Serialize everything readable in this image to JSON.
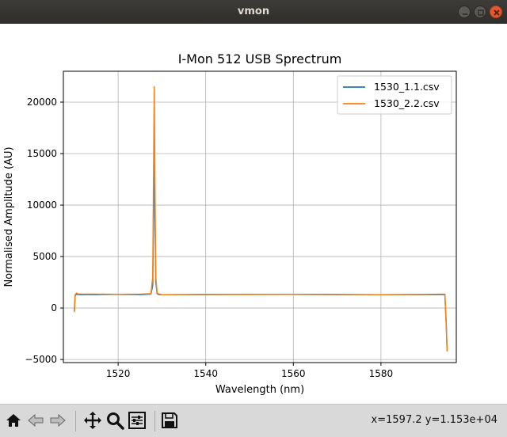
{
  "window": {
    "title": "vmon"
  },
  "toolbar": {
    "buttons": [
      {
        "name": "home-button",
        "icon": "home-icon"
      },
      {
        "name": "back-button",
        "icon": "back-arrow-icon"
      },
      {
        "name": "forward-button",
        "icon": "forward-arrow-icon"
      },
      {
        "name": "pan-button",
        "icon": "move-icon"
      },
      {
        "name": "zoom-button",
        "icon": "zoom-icon"
      },
      {
        "name": "configure-subplots-button",
        "icon": "sliders-icon"
      },
      {
        "name": "save-button",
        "icon": "save-icon"
      }
    ],
    "coords": "x=1597.2 y=1.153e+04"
  },
  "chart_data": {
    "type": "line",
    "title": "I-Mon 512 USB Sprectrum",
    "xlabel": "Wavelength (nm)",
    "ylabel": "Normalised Amplitude (AU)",
    "xlim": [
      1507.5,
      1597.2
    ],
    "ylim": [
      -5300,
      23000
    ],
    "xticks": [
      1520,
      1540,
      1560,
      1580
    ],
    "yticks": [
      -5000,
      0,
      5000,
      10000,
      15000,
      20000
    ],
    "grid": true,
    "legend_position": "top-right",
    "colors": {
      "series1": "#1f77b4",
      "series2": "#ff7f0e"
    },
    "series": [
      {
        "name": "1530_1.1.csv",
        "x": [
          1510.0,
          1510.2,
          1510.5,
          1511,
          1515,
          1520,
          1525,
          1527.5,
          1527.9,
          1528.1,
          1528.25,
          1528.4,
          1528.6,
          1528.9,
          1529.3,
          1530,
          1540,
          1550,
          1560,
          1570,
          1580,
          1590,
          1594.6,
          1594.9,
          1595.1
        ],
        "y": [
          -300,
          1200,
          1350,
          1300,
          1300,
          1320,
          1300,
          1350,
          2200,
          9000,
          18000,
          9000,
          2500,
          1400,
          1300,
          1300,
          1300,
          1320,
          1320,
          1300,
          1300,
          1300,
          1300,
          -1500,
          -4200
        ]
      },
      {
        "name": "1530_2.2.csv",
        "x": [
          1510.0,
          1510.2,
          1510.5,
          1511,
          1515,
          1520,
          1525,
          1527.5,
          1527.9,
          1528.1,
          1528.25,
          1528.4,
          1528.6,
          1528.9,
          1529.3,
          1530,
          1540,
          1550,
          1560,
          1570,
          1580,
          1590,
          1594.6,
          1594.9,
          1595.1
        ],
        "y": [
          -400,
          1300,
          1450,
          1350,
          1350,
          1330,
          1350,
          1400,
          3000,
          14000,
          21500,
          12000,
          3000,
          1500,
          1350,
          1300,
          1320,
          1310,
          1340,
          1320,
          1300,
          1320,
          1350,
          -1800,
          -4200
        ]
      }
    ]
  }
}
